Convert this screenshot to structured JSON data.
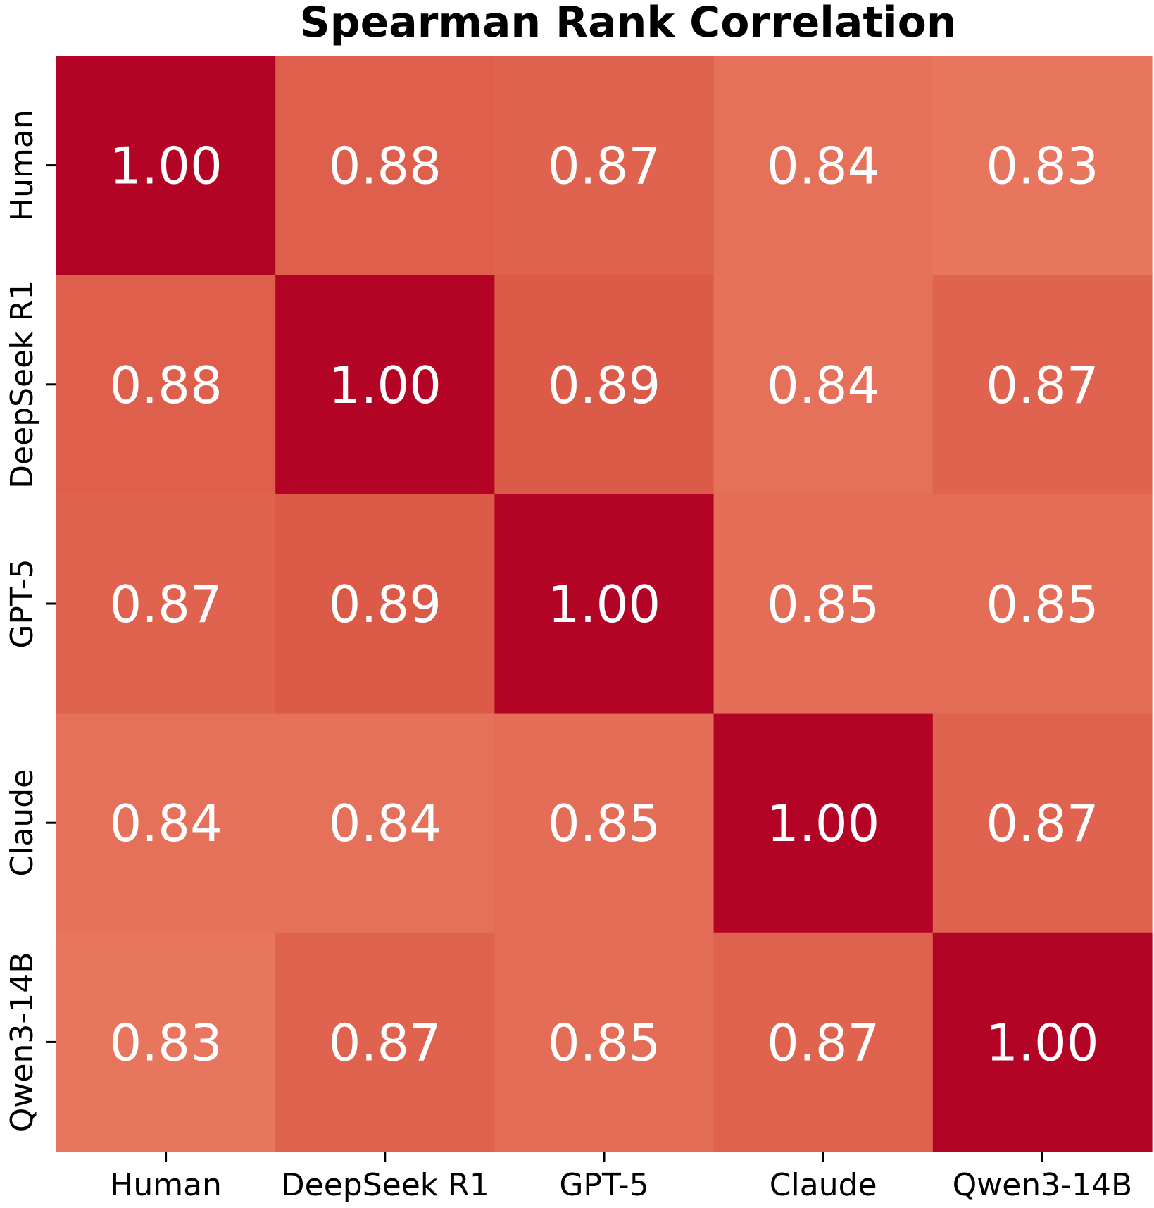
{
  "chart_data": {
    "type": "heatmap",
    "title": "Spearman Rank Correlation",
    "x_labels": [
      "Human",
      "DeepSeek R1",
      "GPT-5",
      "Claude",
      "Qwen3-14B"
    ],
    "y_labels": [
      "Human",
      "DeepSeek R1",
      "GPT-5",
      "Claude",
      "Qwen3-14B"
    ],
    "values": [
      [
        1.0,
        0.88,
        0.87,
        0.84,
        0.83
      ],
      [
        0.88,
        1.0,
        0.89,
        0.84,
        0.87
      ],
      [
        0.87,
        0.89,
        1.0,
        0.85,
        0.85
      ],
      [
        0.84,
        0.84,
        0.85,
        1.0,
        0.87
      ],
      [
        0.83,
        0.87,
        0.85,
        0.87,
        1.0
      ]
    ],
    "value_format": "0.00",
    "colorbar": false,
    "colors": {
      "max": "#b40426",
      "low": "#e8765e",
      "text": "#ffffff"
    }
  }
}
